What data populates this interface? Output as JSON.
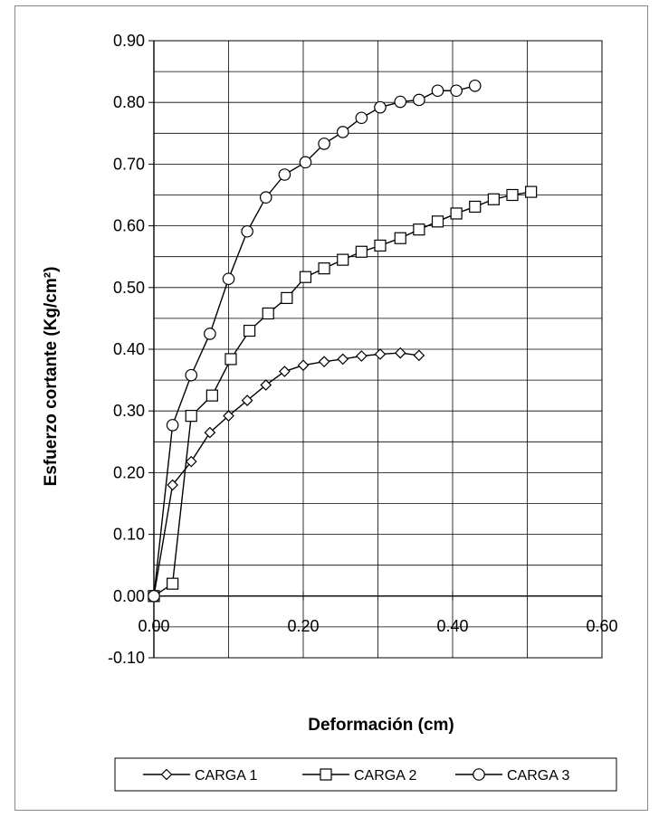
{
  "chart_data": {
    "type": "line",
    "title": "",
    "xlabel": "Deformación (cm)",
    "ylabel": "Esfuerzo cortante (Kg/cm²)",
    "xlim": [
      0,
      0.6
    ],
    "ylim": [
      -0.1,
      0.9
    ],
    "x_ticks": [
      "0.00",
      "0.20",
      "0.40",
      "0.60"
    ],
    "y_ticks": [
      "-0.10",
      "0.00",
      "0.10",
      "0.20",
      "0.30",
      "0.40",
      "0.50",
      "0.60",
      "0.70",
      "0.80",
      "0.90"
    ],
    "grid": true,
    "legend_position": "bottom",
    "series": [
      {
        "name": "CARGA 1",
        "marker": "diamond",
        "color": "#000000",
        "points": [
          [
            0.0,
            0.0
          ],
          [
            0.025,
            0.18
          ],
          [
            0.05,
            0.218
          ],
          [
            0.075,
            0.265
          ],
          [
            0.1,
            0.292
          ],
          [
            0.125,
            0.317
          ],
          [
            0.15,
            0.342
          ],
          [
            0.175,
            0.364
          ],
          [
            0.2,
            0.374
          ],
          [
            0.228,
            0.38
          ],
          [
            0.253,
            0.384
          ],
          [
            0.278,
            0.389
          ],
          [
            0.303,
            0.392
          ],
          [
            0.33,
            0.394
          ],
          [
            0.355,
            0.39
          ]
        ]
      },
      {
        "name": "CARGA 2",
        "marker": "square",
        "color": "#000000",
        "points": [
          [
            0.0,
            0.0
          ],
          [
            0.025,
            0.02
          ],
          [
            0.05,
            0.292
          ],
          [
            0.078,
            0.325
          ],
          [
            0.103,
            0.384
          ],
          [
            0.128,
            0.43
          ],
          [
            0.153,
            0.458
          ],
          [
            0.178,
            0.483
          ],
          [
            0.203,
            0.517
          ],
          [
            0.228,
            0.531
          ],
          [
            0.253,
            0.545
          ],
          [
            0.278,
            0.558
          ],
          [
            0.303,
            0.568
          ],
          [
            0.33,
            0.58
          ],
          [
            0.355,
            0.594
          ],
          [
            0.38,
            0.607
          ],
          [
            0.405,
            0.62
          ],
          [
            0.43,
            0.631
          ],
          [
            0.455,
            0.643
          ],
          [
            0.48,
            0.65
          ],
          [
            0.505,
            0.655
          ]
        ]
      },
      {
        "name": "CARGA 3",
        "marker": "circle",
        "color": "#000000",
        "points": [
          [
            0.0,
            0.0
          ],
          [
            0.025,
            0.277
          ],
          [
            0.05,
            0.358
          ],
          [
            0.075,
            0.425
          ],
          [
            0.1,
            0.514
          ],
          [
            0.125,
            0.591
          ],
          [
            0.15,
            0.646
          ],
          [
            0.175,
            0.683
          ],
          [
            0.203,
            0.703
          ],
          [
            0.228,
            0.733
          ],
          [
            0.253,
            0.752
          ],
          [
            0.278,
            0.775
          ],
          [
            0.303,
            0.792
          ],
          [
            0.33,
            0.801
          ],
          [
            0.355,
            0.804
          ],
          [
            0.38,
            0.819
          ],
          [
            0.405,
            0.819
          ],
          [
            0.43,
            0.827
          ]
        ]
      }
    ]
  }
}
